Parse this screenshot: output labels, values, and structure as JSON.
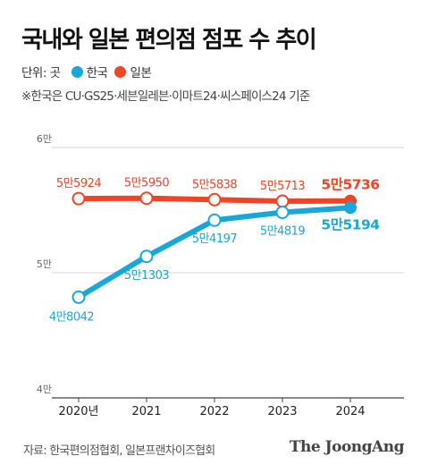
{
  "title": "국내와 일본 편의점 점포 수 추이",
  "legend": {
    "unit": "단위: 곳",
    "series": [
      {
        "name": "한국",
        "color": "#19a7d8"
      },
      {
        "name": "일본",
        "color": "#ee4427"
      }
    ]
  },
  "note": "※한국은 CU·GS25·세븐일레븐·이마트24·씨스페이스24 기준",
  "source": "자료: 한국편의점협회, 일본프랜차이즈협회",
  "logo": "The JoongAng",
  "chart_data": {
    "type": "line",
    "categories": [
      "2020년",
      "2021",
      "2022",
      "2023",
      "2024"
    ],
    "y_ticks": [
      {
        "value": 40000,
        "label": "4만"
      },
      {
        "value": 50000,
        "label": "5만"
      },
      {
        "value": 60000,
        "label": "6만"
      }
    ],
    "ylim": [
      40000,
      60000
    ],
    "series": [
      {
        "name": "일본",
        "color": "#ee4427",
        "values": [
          55924,
          55950,
          55838,
          55713,
          55736
        ],
        "labels": [
          "5만5924",
          "5만5950",
          "5만5838",
          "5만5713",
          "5만5736"
        ]
      },
      {
        "name": "한국",
        "color": "#19a7d8",
        "values": [
          48042,
          51303,
          54197,
          54819,
          55194
        ],
        "labels": [
          "4만8042",
          "5만1303",
          "5만4197",
          "5만4819",
          "5만5194"
        ]
      }
    ]
  }
}
